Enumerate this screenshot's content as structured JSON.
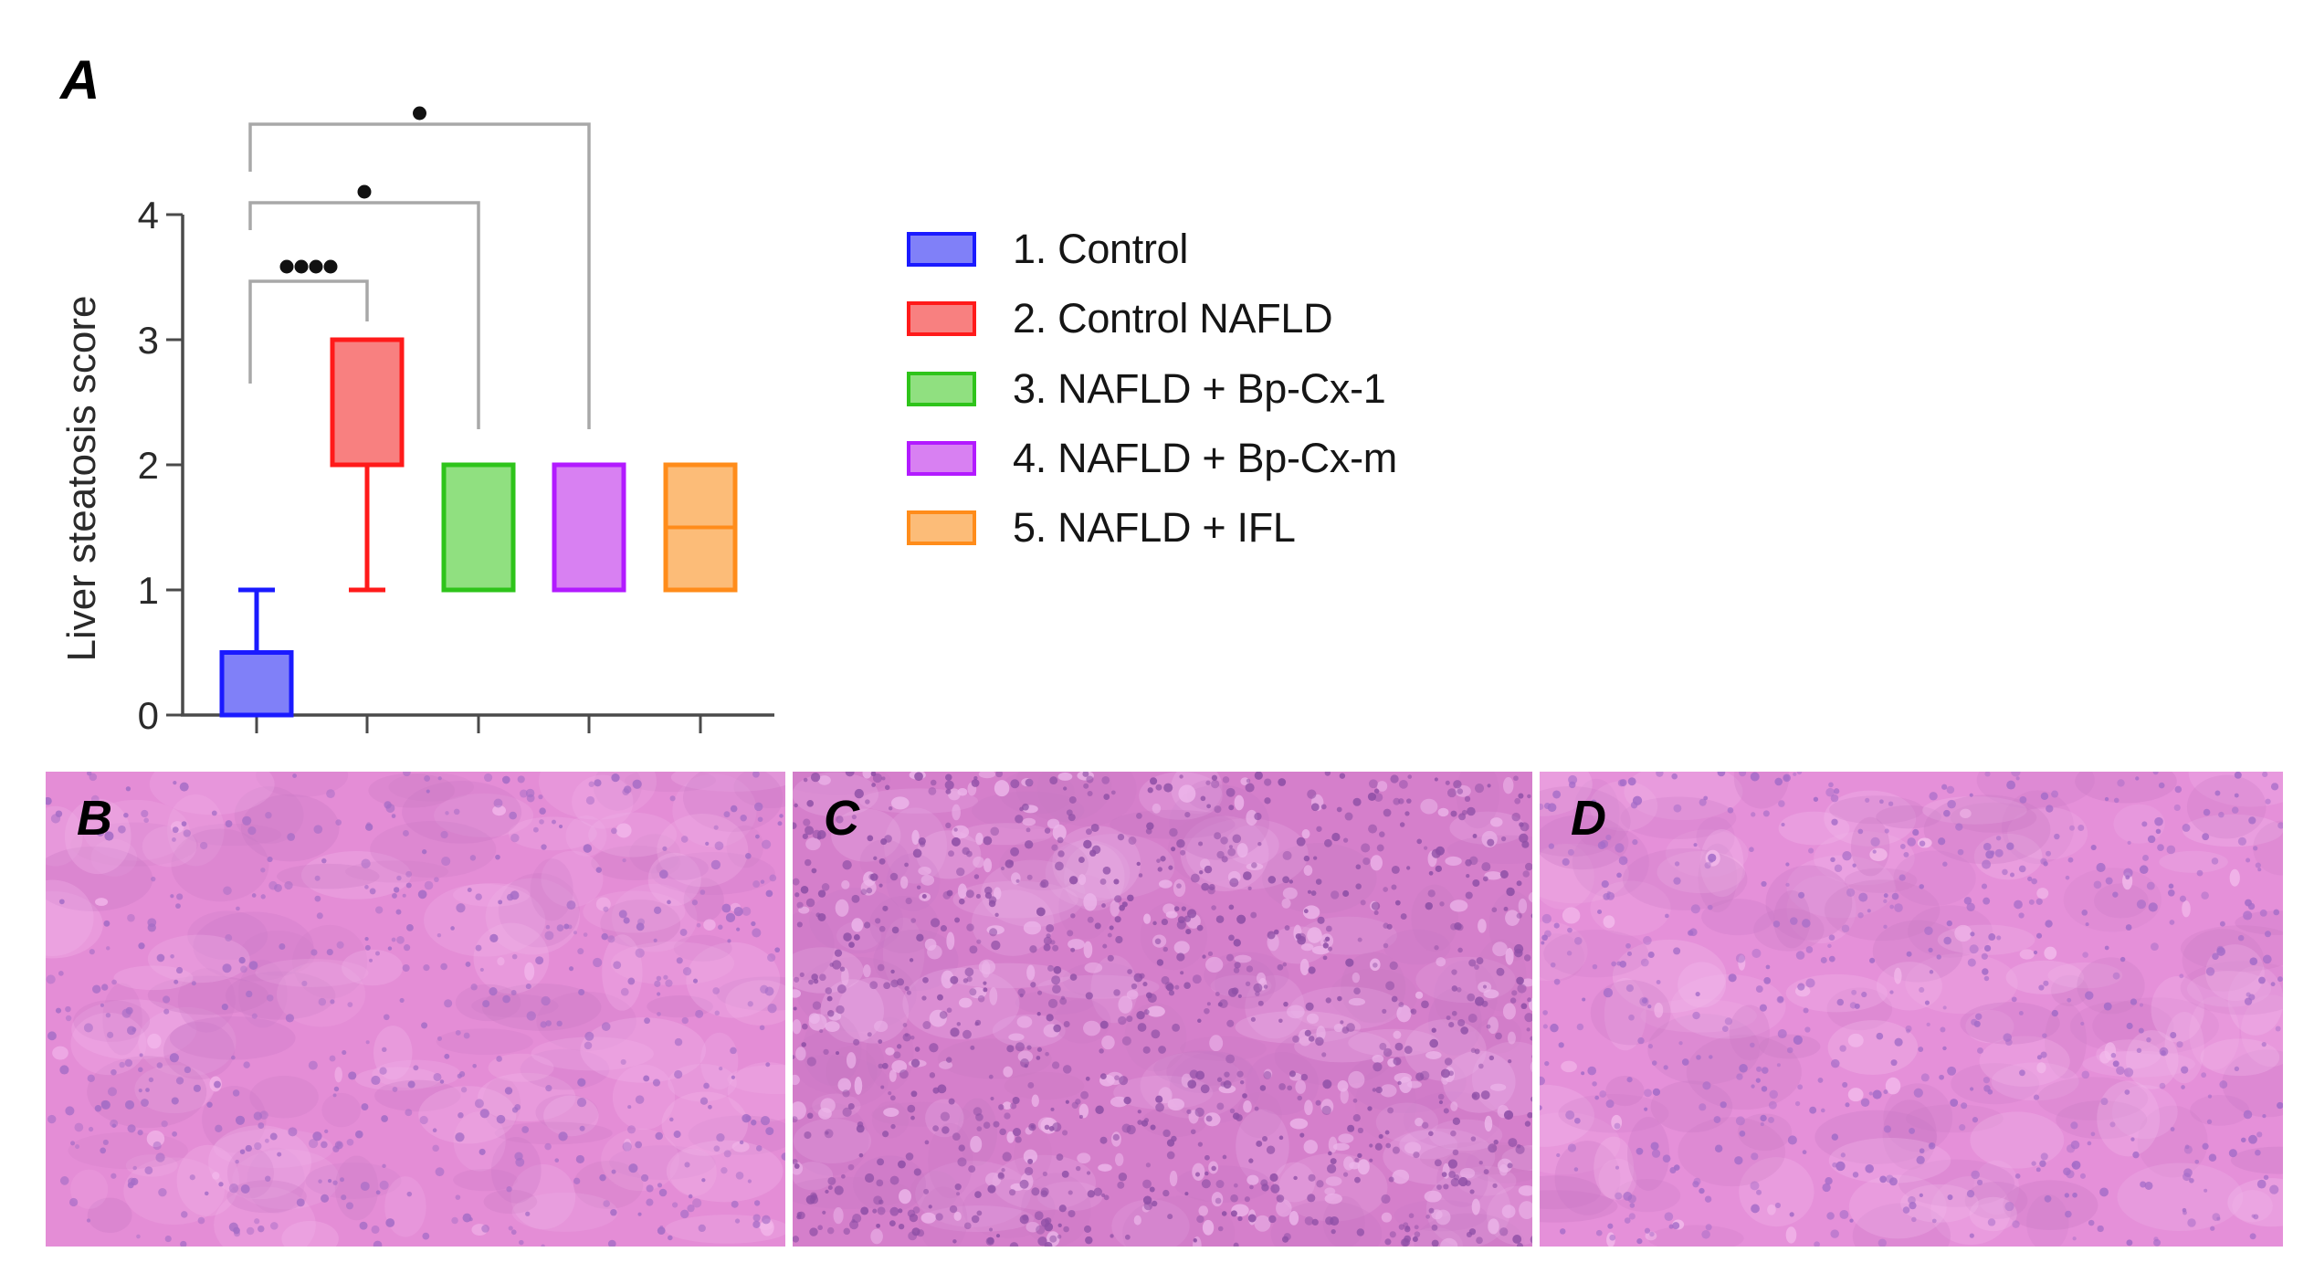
{
  "figure": {
    "panel_labels": [
      "A",
      "B",
      "C",
      "D"
    ]
  },
  "chart_data": {
    "type": "box",
    "title": "",
    "xlabel": "",
    "ylabel": "Liver steatosis score",
    "ylim": [
      0,
      4
    ],
    "yticks": [
      0,
      1,
      2,
      3,
      4
    ],
    "grid": false,
    "legend_position": "right",
    "categories": [
      "1. Control",
      "2. Control NAFLD",
      "3. NAFLD + Bp-Cx-1",
      "4. NAFLD + Bp-Cx-m",
      "5. NAFLD + IFL"
    ],
    "series": [
      {
        "name": "1. Control",
        "min": 0,
        "q1": 0,
        "median": 0,
        "q3": 0.5,
        "max": 1,
        "fill": "#8080f8",
        "stroke": "#1a1aff"
      },
      {
        "name": "2. Control NAFLD",
        "min": 1,
        "q1": 2,
        "median": 3,
        "q3": 3,
        "max": 3,
        "fill": "#f88080",
        "stroke": "#ff1a1a"
      },
      {
        "name": "3. NAFLD + Bp-Cx-1",
        "min": 1,
        "q1": 1,
        "median": 1,
        "q3": 2,
        "max": 2,
        "fill": "#90e080",
        "stroke": "#2ec41a"
      },
      {
        "name": "4. NAFLD + Bp-Cx-m",
        "min": 1,
        "q1": 1,
        "median": 2,
        "q3": 2,
        "max": 2,
        "fill": "#d880f2",
        "stroke": "#b21aff"
      },
      {
        "name": "5. NAFLD + IFL",
        "min": 1,
        "q1": 1,
        "median": 1.5,
        "q3": 2,
        "max": 2,
        "fill": "#fcbc78",
        "stroke": "#ff8c1a"
      }
    ],
    "significance": [
      {
        "from": 1,
        "to": 2,
        "label": "****"
      },
      {
        "from": 1,
        "to": 3,
        "label": "*"
      },
      {
        "from": 1,
        "to": 4,
        "label": "*"
      }
    ]
  },
  "histology": [
    {
      "label": "B",
      "base": "#e48dd6",
      "nuclei": "#a46cc6",
      "light": "#f2b6ea",
      "density": 520,
      "vacuoles": 20
    },
    {
      "label": "C",
      "base": "#d57fcb",
      "nuclei": "#8e4fa6",
      "light": "#ecb6ea",
      "density": 950,
      "vacuoles": 260
    },
    {
      "label": "D",
      "base": "#e590d9",
      "nuclei": "#a46cc8",
      "light": "#f3bcec",
      "density": 580,
      "vacuoles": 30
    }
  ]
}
